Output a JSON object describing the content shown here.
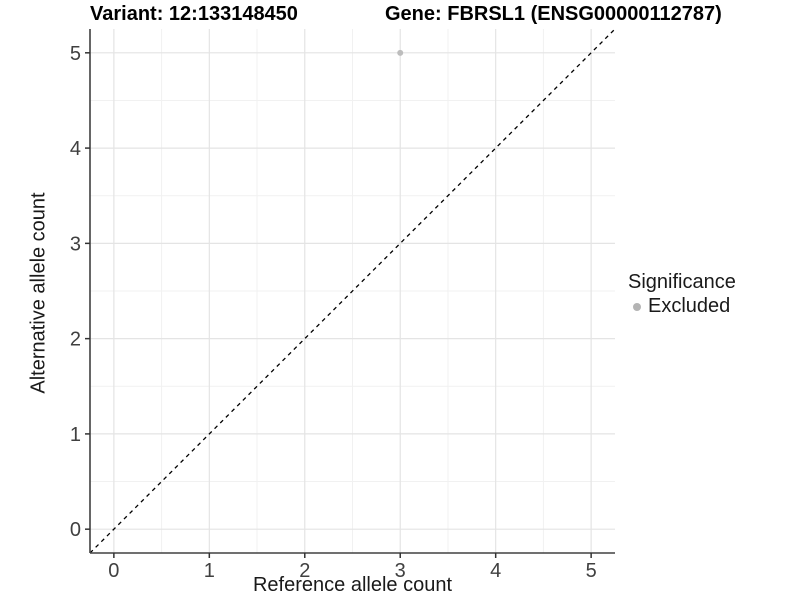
{
  "chart_data": {
    "type": "scatter",
    "title_left": "Variant: 12:133148450",
    "title_right": "Gene: FBRSL1 (ENSG00000112787)",
    "xlabel": "Reference allele count",
    "ylabel": "Alternative allele count",
    "xlim": [
      -0.25,
      5.25
    ],
    "ylim": [
      -0.25,
      5.25
    ],
    "x_ticks": [
      0,
      1,
      2,
      3,
      4,
      5
    ],
    "y_ticks": [
      0,
      1,
      2,
      3,
      4,
      5
    ],
    "minor_grid_step": 0.5,
    "grid": true,
    "points": [
      {
        "x": 3,
        "y": 5,
        "series": "Excluded"
      }
    ],
    "reference_line": {
      "kind": "identity",
      "style": "dashed",
      "color": "#000000"
    },
    "legend": {
      "title": "Significance",
      "position": "right",
      "items": [
        {
          "label": "Excluded",
          "color": "#b4b4b4"
        }
      ]
    },
    "colors": {
      "point": "#bdbdbd",
      "grid_major": "#e4e4e4",
      "grid_minor": "#f1f1f1",
      "axis_line": "#404040",
      "tick_mark": "#333333",
      "tick_label": "#404040",
      "background": "#ffffff"
    }
  }
}
